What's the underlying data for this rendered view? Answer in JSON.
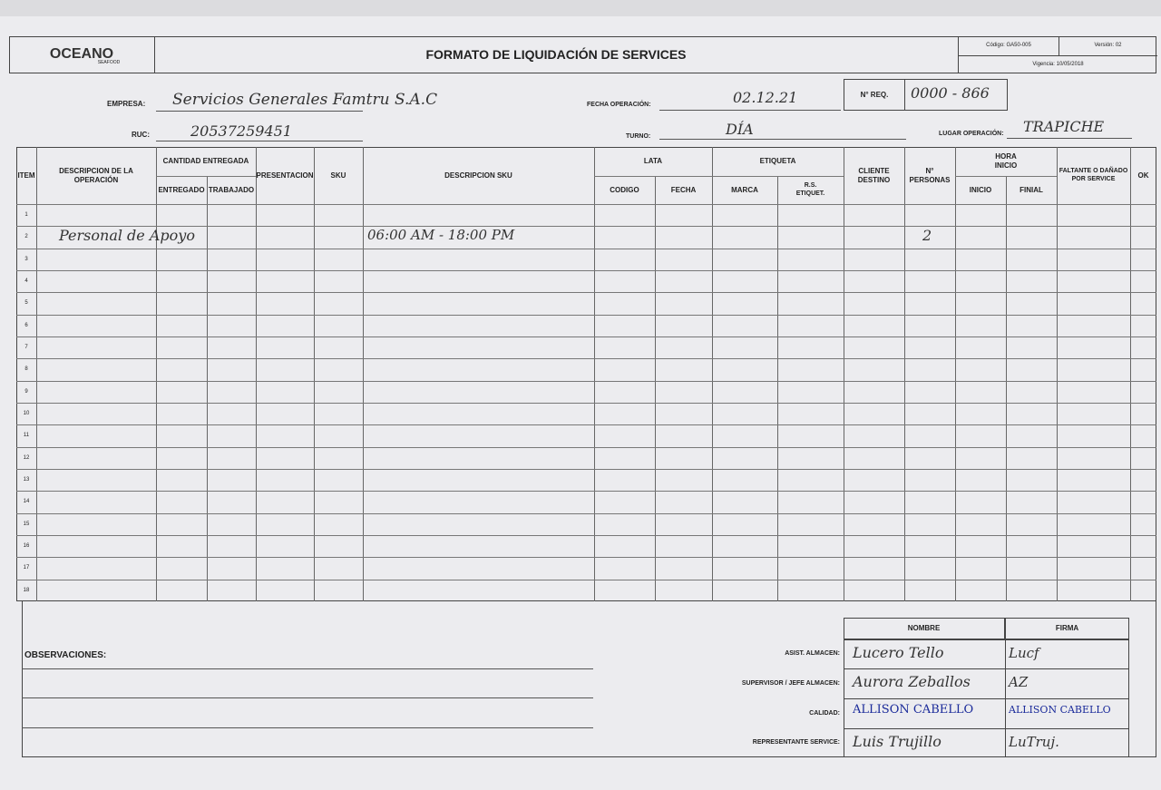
{
  "header": {
    "logo": "OCEANO",
    "logo_sub": "SEAFOOD",
    "title": "FORMATO DE LIQUIDACIÓN DE SERVICES",
    "codigo": "Código: GA50-005",
    "version": "Versión: 02",
    "vigencia": "Vigencia: 10/05/2018"
  },
  "fields": {
    "empresa_label": "EMPRESA:",
    "empresa": "Servicios Generales Famtru S.A.C",
    "ruc_label": "RUC:",
    "ruc": "20537259451",
    "fecha_label": "FECHA OPERACIÓN:",
    "fecha": "02.12.21",
    "turno_label": "TURNO:",
    "turno": "DÍA",
    "nreq_label": "N° REQ.",
    "nreq": "0000 - 866",
    "lugar_label": "LUGAR OPERACIÓN:",
    "lugar": "TRAPICHE"
  },
  "columns": {
    "item": "ITEM",
    "descripcion": "DESCRIPCION DE LA OPERACIÓN",
    "cantidad": "CANTIDAD ENTREGADA",
    "entregado": "ENTREGADO",
    "trabajado": "TRABAJADO",
    "presentacion": "PRESENTACION",
    "sku": "SKU",
    "descripcion_sku": "DESCRIPCION SKU",
    "lata": "LATA",
    "codigo": "CODIGO",
    "fecha": "FECHA",
    "etiqueta": "ETIQUETA",
    "marca": "MARCA",
    "rs": "R.S. ETIQUET.",
    "cliente": "CLIENTE DESTINO",
    "personas": "N° PERSONAS",
    "hora": "HORA INICIO",
    "inicio": "INICIO",
    "final": "FINIAL",
    "faltante": "FALTANTE O DAÑADO POR SERVICE",
    "ok": "OK"
  },
  "rows": [
    {
      "item": "1"
    },
    {
      "item": "2",
      "descripcion": "Personal de Apoyo",
      "descripcion_sku": "06:00 AM - 18:00 PM",
      "personas": "2"
    },
    {
      "item": "3"
    },
    {
      "item": "4"
    },
    {
      "item": "5"
    },
    {
      "item": "6"
    },
    {
      "item": "7"
    },
    {
      "item": "8"
    },
    {
      "item": "9"
    },
    {
      "item": "10"
    },
    {
      "item": "11"
    },
    {
      "item": "12"
    },
    {
      "item": "13"
    },
    {
      "item": "14"
    },
    {
      "item": "15"
    },
    {
      "item": "16"
    },
    {
      "item": "17"
    },
    {
      "item": "18"
    }
  ],
  "footer": {
    "observaciones": "OBSERVACIONES:",
    "nombre": "NOMBRE",
    "firma": "FIRMA",
    "signers": [
      {
        "role": "ASIST. ALMACEN:",
        "name": "Lucero Tello",
        "firma": "Lucf"
      },
      {
        "role": "SUPERVISOR / JEFE ALMACEN:",
        "name": "Aurora Zeballos",
        "firma": "AZ"
      },
      {
        "role": "CALIDAD:",
        "name": "ALLISON CABELLO",
        "firma": "ALLISON CABELLO"
      },
      {
        "role": "REPRESENTANTE SERVICE:",
        "name": "Luis Trujillo",
        "firma": "LuTruj."
      }
    ]
  }
}
